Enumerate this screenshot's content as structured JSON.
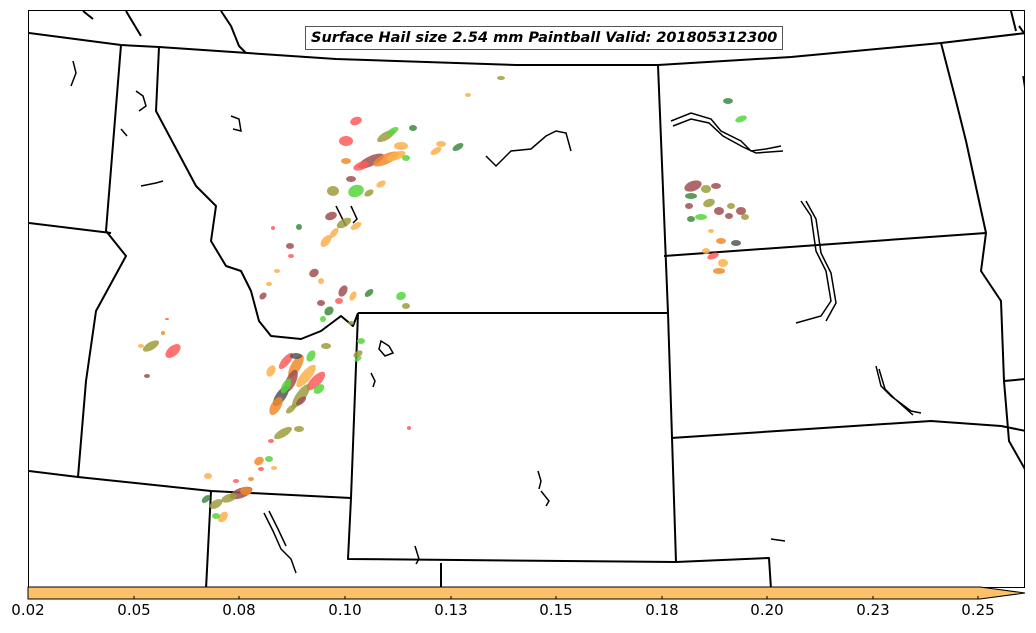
{
  "title": "Surface Hail size 2.54 mm Paintball Valid: 201805312300",
  "colorbar": {
    "fill_color": "#fdc06a",
    "tick_labels": [
      "0.02",
      "0.05",
      "0.08",
      "0.10",
      "0.13",
      "0.15",
      "0.18",
      "0.20",
      "0.23",
      "0.25"
    ],
    "extend": "max"
  },
  "paintball_colors": [
    "#ff5a5a",
    "#f08a2a",
    "#fbb04a",
    "#56d63c",
    "#9c9c3c",
    "#a05050",
    "#3e8a3e",
    "#555555"
  ]
}
